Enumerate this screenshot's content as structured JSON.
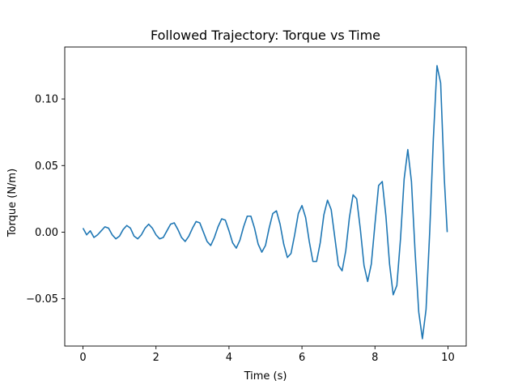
{
  "chart_data": {
    "type": "line",
    "title": "Followed Trajectory: Torque vs Time",
    "xlabel": "Time (s)",
    "ylabel": "Torque (N/m)",
    "xlim": [
      -0.5,
      10.5
    ],
    "ylim": [
      -0.0855,
      0.139
    ],
    "xticks": [
      0,
      2,
      4,
      6,
      8,
      10
    ],
    "xtick_labels": [
      "0",
      "2",
      "4",
      "6",
      "8",
      "10"
    ],
    "yticks": [
      -0.05,
      0.0,
      0.05,
      0.1
    ],
    "ytick_labels": [
      "−0.05",
      "0.00",
      "0.05",
      "0.10"
    ],
    "grid": false,
    "series": [
      {
        "color": "#1f77b4",
        "x": [
          0.0,
          0.1,
          0.2,
          0.3,
          0.4,
          0.5,
          0.6,
          0.7,
          0.8,
          0.9,
          1.0,
          1.1,
          1.2,
          1.3,
          1.4,
          1.5,
          1.6,
          1.7,
          1.8,
          1.9,
          2.0,
          2.1,
          2.2,
          2.3,
          2.4,
          2.5,
          2.6,
          2.7,
          2.8,
          2.9,
          3.0,
          3.1,
          3.2,
          3.3,
          3.4,
          3.5,
          3.6,
          3.7,
          3.8,
          3.9,
          4.0,
          4.1,
          4.2,
          4.3,
          4.4,
          4.5,
          4.6,
          4.7,
          4.8,
          4.9,
          5.0,
          5.1,
          5.2,
          5.3,
          5.4,
          5.5,
          5.6,
          5.7,
          5.8,
          5.9,
          6.0,
          6.1,
          6.2,
          6.3,
          6.4,
          6.5,
          6.6,
          6.7,
          6.8,
          6.9,
          7.0,
          7.1,
          7.2,
          7.3,
          7.4,
          7.5,
          7.6,
          7.7,
          7.8,
          7.9,
          8.0,
          8.1,
          8.2,
          8.3,
          8.4,
          8.5,
          8.6,
          8.7,
          8.8,
          8.9,
          9.0,
          9.1,
          9.2,
          9.3,
          9.4,
          9.5,
          9.6,
          9.7,
          9.8,
          9.9,
          9.98
        ],
        "y": [
          0.003,
          -0.002,
          0.001,
          -0.004,
          -0.002,
          0.001,
          0.004,
          0.003,
          -0.002,
          -0.005,
          -0.003,
          0.002,
          0.005,
          0.003,
          -0.003,
          -0.005,
          -0.002,
          0.003,
          0.006,
          0.003,
          -0.002,
          -0.005,
          -0.004,
          0.001,
          0.006,
          0.007,
          0.002,
          -0.004,
          -0.007,
          -0.003,
          0.003,
          0.008,
          0.007,
          0.0,
          -0.007,
          -0.01,
          -0.004,
          0.004,
          0.01,
          0.009,
          0.001,
          -0.008,
          -0.012,
          -0.006,
          0.004,
          0.012,
          0.012,
          0.003,
          -0.009,
          -0.015,
          -0.01,
          0.003,
          0.014,
          0.016,
          0.006,
          -0.009,
          -0.019,
          -0.016,
          -0.002,
          0.014,
          0.02,
          0.011,
          -0.007,
          -0.022,
          -0.022,
          -0.008,
          0.013,
          0.024,
          0.017,
          -0.004,
          -0.025,
          -0.029,
          -0.014,
          0.011,
          0.028,
          0.025,
          0.002,
          -0.025,
          -0.037,
          -0.024,
          0.006,
          0.035,
          0.038,
          0.012,
          -0.024,
          -0.047,
          -0.04,
          -0.005,
          0.04,
          0.062,
          0.038,
          -0.015,
          -0.06,
          -0.08,
          -0.058,
          0.0,
          0.07,
          0.125,
          0.112,
          0.04,
          0.0
        ]
      }
    ]
  }
}
